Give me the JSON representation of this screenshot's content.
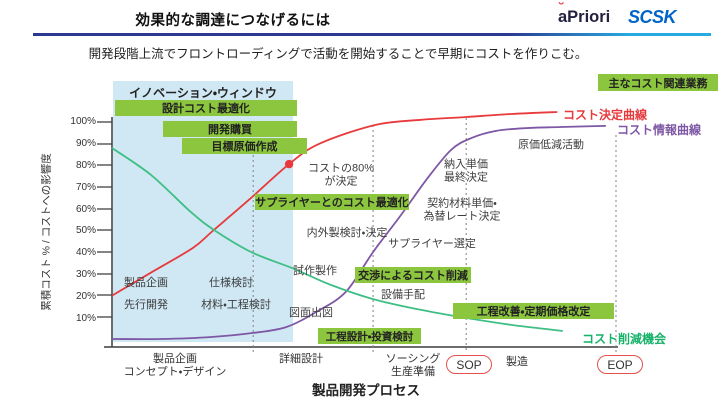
{
  "header": {
    "title": "効果的な調達につなげるには",
    "subtitle": "開発段階上流でフロントローディングで活動を開始することで早期にコストを作りこむ。",
    "logos": {
      "apriori": "aPriori",
      "scsk": "SCSK"
    }
  },
  "colors": {
    "cost_determination_curve": "#e8393c",
    "cost_information_curve": "#7e57a5",
    "cost_reduction_curve": "#3fbe85",
    "task_bar_green": "#8cc63f",
    "innovation_window_blue": "#cfe8f4",
    "milestone_border_red": "#e4504d",
    "rule_navy": "#2b3990",
    "rule_cyan": "#27aae1"
  },
  "innovation_window_label": "イノベーション・ウィンドウ",
  "bars": [
    "設計コスト最適化",
    "開発購買",
    "目標原価作成",
    "サプライヤーとのコスト最適化",
    "交渉によるコスト削減",
    "工程設計・投資検討",
    "工程改善・定期価格改定",
    "主なコスト関連業務"
  ],
  "annotations": [
    {
      "text": "コストの80%\nが決定"
    },
    {
      "text": "内外製検討・決定"
    },
    {
      "text": "試作製作"
    },
    {
      "text": "製品企画"
    },
    {
      "text": "先行開発"
    },
    {
      "text": "仕様検討"
    },
    {
      "text": "材料・工程検討"
    },
    {
      "text": "図面出図"
    },
    {
      "text": "設備手配"
    },
    {
      "text": "サプライヤー選定"
    },
    {
      "text": "契約材料単価・\n為替レート決定"
    },
    {
      "text": "納入単価\n最終決定"
    },
    {
      "text": "原価低減活動"
    }
  ],
  "curve_labels": {
    "determination": "コスト決定曲線",
    "information": "コスト情報曲線",
    "reduction": "コスト削減機会"
  },
  "axis": {
    "y_title": "累積コスト % / コストへの影響度",
    "y_ticks": [
      "100%",
      "90%",
      "80%",
      "70%",
      "60%",
      "50%",
      "40%",
      "30%",
      "20%",
      "10%"
    ],
    "x_title": "製品開発プロセス",
    "stages": [
      {
        "label": "製品企画\nコンセプト・デザイン"
      },
      {
        "label": "詳細設計"
      },
      {
        "label": "ソーシング\n生産準備"
      },
      {
        "label": "製造"
      }
    ],
    "milestones": {
      "sop": "SOP",
      "eop": "EOP"
    }
  },
  "chart_data": {
    "type": "line",
    "title": "効果的な調達につなげるには",
    "xlabel": "製品開発プロセス",
    "ylabel": "累積コスト % / コストへの影響度",
    "ylim": [
      0,
      100
    ],
    "x_is_timeline_pct": true,
    "stage_boundaries_x_pct": [
      27.9,
      51.6,
      70,
      99.6
    ],
    "legend_position": "on-curve-right",
    "grid": false,
    "series": [
      {
        "key": "determination",
        "name": "コスト決定曲線",
        "color": "#e8393c",
        "x": [
          0,
          8,
          16,
          20,
          27,
          35,
          41,
          52,
          61,
          70,
          79,
          88
        ],
        "y": [
          20,
          31,
          42,
          50,
          64,
          80.6,
          90,
          98.6,
          101,
          102.3,
          103.7,
          104.6
        ]
      },
      {
        "key": "information",
        "name": "コスト情報曲線",
        "color": "#7e57a5",
        "x": [
          0,
          9.7,
          19.6,
          27.9,
          34.4,
          40.3,
          46.2,
          51.6,
          57.1,
          62.1,
          67,
          71,
          75.9,
          81.8,
          88.7,
          97.6
        ],
        "y": [
          0,
          0,
          0.9,
          2.8,
          5.5,
          12.4,
          21.7,
          40.1,
          57.1,
          73.3,
          87.1,
          92.6,
          95.9,
          97.2,
          97.7,
          98.2
        ]
      },
      {
        "key": "reduction",
        "name": "コスト削減機会",
        "color": "#3fbe85",
        "x": [
          0,
          7.7,
          15.6,
          20.2,
          27.5,
          36,
          43.3,
          51.6,
          61.1,
          70,
          78.9,
          89.1
        ],
        "y": [
          88,
          75.6,
          58.5,
          50.2,
          40.1,
          32.3,
          24.9,
          18.4,
          13.4,
          9.7,
          6.5,
          3.7
        ]
      }
    ],
    "key_point": {
      "label": "コストの80%が決定",
      "x": 35,
      "y": 80.6
    }
  }
}
